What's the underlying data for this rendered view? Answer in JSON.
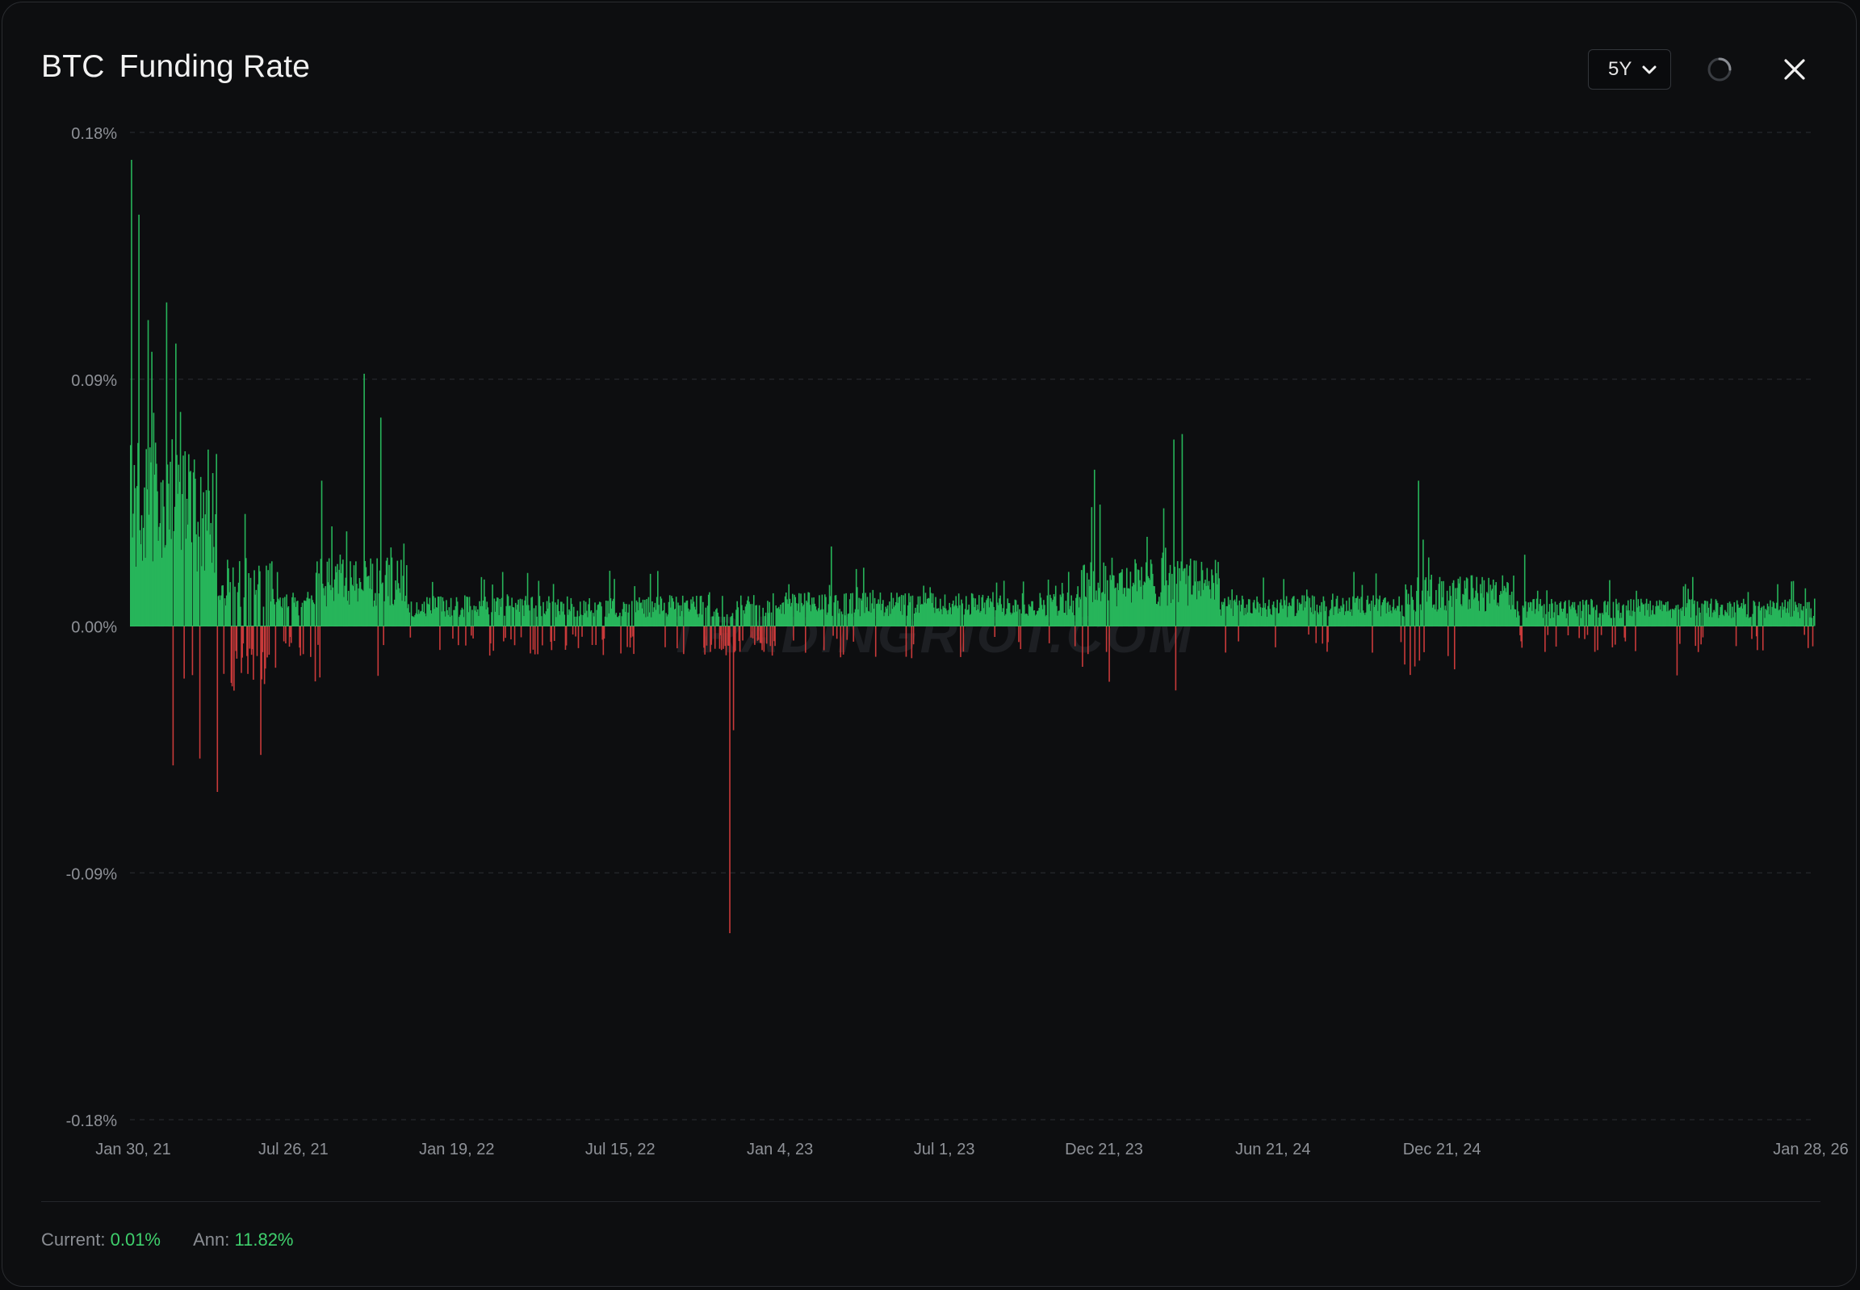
{
  "header": {
    "symbol": "BTC",
    "title": "Funding Rate",
    "range_selected": "5Y",
    "icons": {
      "refresh": "refresh-icon",
      "close": "close-icon",
      "dropdown": "chevron-down-icon"
    }
  },
  "footer": {
    "current_label": "Current:",
    "current_value": "0.01%",
    "ann_label": "Ann:",
    "ann_value": "11.82%"
  },
  "watermark": "TRADINGRIOT.COM",
  "colors": {
    "positive": "#27b55a",
    "negative": "#c93a3a",
    "accent_text": "#3fcf6c"
  },
  "chart_data": {
    "type": "bar",
    "x_axis": "time",
    "x_start": "2021-01-30",
    "x_end": "2026-01-28",
    "x_tick_labels": [
      "Jan 30, 21",
      "Jul 26, 21",
      "Jan 19, 22",
      "Jul 15, 22",
      "Jan 4, 23",
      "Jul 1, 23",
      "Dec 21, 23",
      "Jun 21, 24",
      "Dec 21, 24",
      "Jan 28, 26"
    ],
    "y_tick_labels": [
      "0.18%",
      "0.09%",
      "0.00%",
      "-0.09%",
      "-0.18%"
    ],
    "ylim": [
      -0.18,
      0.18
    ],
    "grid": true,
    "key_points": [
      {
        "date": "2021-01-31",
        "value": 0.17
      },
      {
        "date": "2021-02-08",
        "value": 0.15
      },
      {
        "date": "2021-02-22",
        "value": 0.1
      },
      {
        "date": "2021-03-10",
        "value": 0.118
      },
      {
        "date": "2021-03-20",
        "value": 0.103
      },
      {
        "date": "2021-04-08",
        "value": 0.056
      },
      {
        "date": "2021-05-20",
        "value": -0.022
      },
      {
        "date": "2021-06-20",
        "value": -0.047
      },
      {
        "date": "2021-08-25",
        "value": 0.053
      },
      {
        "date": "2021-10-10",
        "value": 0.092
      },
      {
        "date": "2021-10-28",
        "value": 0.076
      },
      {
        "date": "2022-11-10",
        "value": -0.112
      },
      {
        "date": "2022-11-14",
        "value": -0.038
      },
      {
        "date": "2023-02-28",
        "value": 0.029
      },
      {
        "date": "2023-12-10",
        "value": 0.057
      },
      {
        "date": "2024-03-05",
        "value": 0.068
      },
      {
        "date": "2024-03-14",
        "value": 0.07
      },
      {
        "date": "2024-11-25",
        "value": 0.053
      },
      {
        "date": "2025-03-20",
        "value": 0.026
      },
      {
        "date": "2025-09-01",
        "value": -0.018
      },
      {
        "date": "2026-01-28",
        "value": 0.01
      }
    ]
  }
}
